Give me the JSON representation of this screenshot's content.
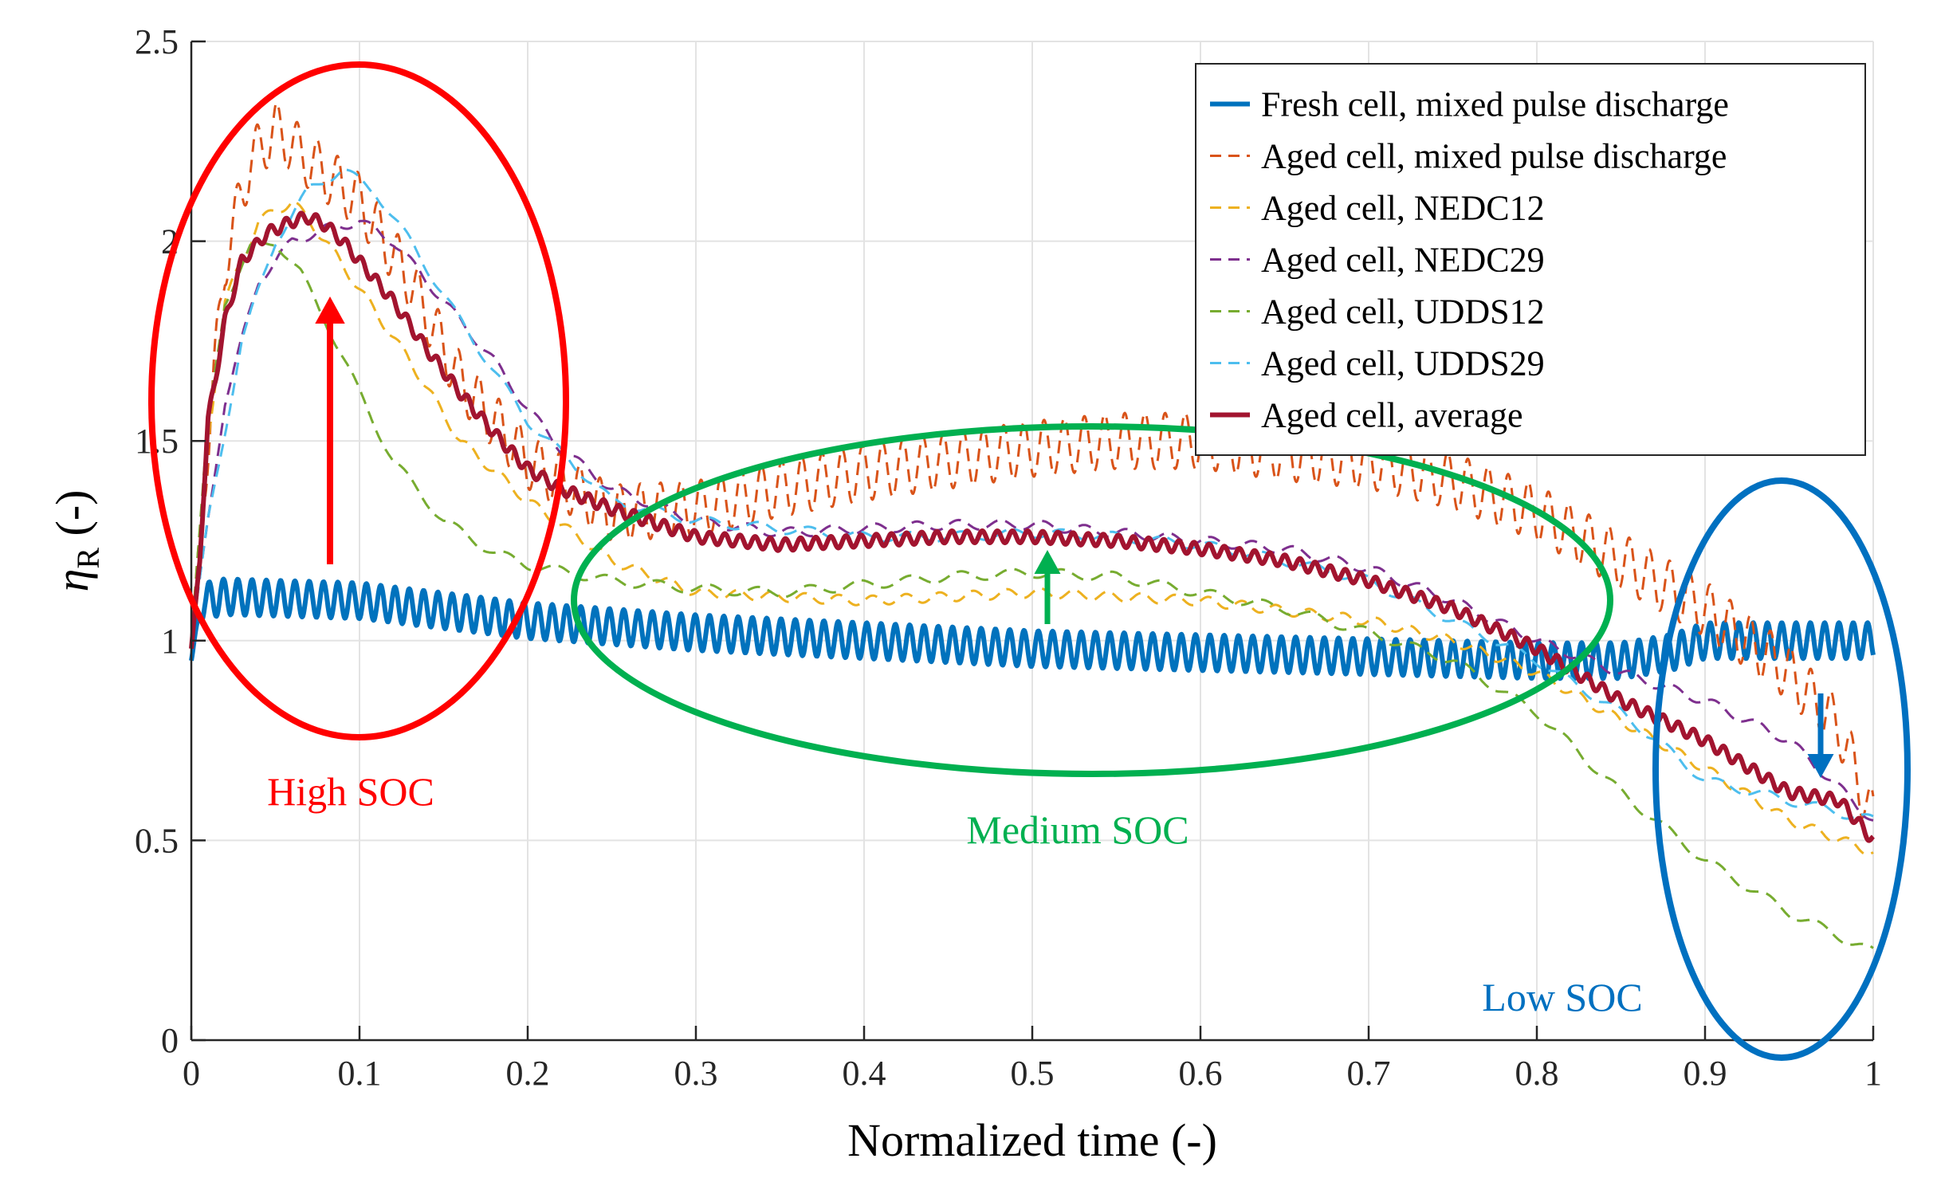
{
  "chart_data": {
    "type": "line",
    "title": "",
    "xlabel": "Normalized time (-)",
    "ylabel_symbol": "η",
    "ylabel_subscript": "R",
    "ylabel_suffix": " (-)",
    "xlim": [
      0,
      1
    ],
    "ylim": [
      0,
      2.5
    ],
    "x_ticks": [
      0,
      0.1,
      0.2,
      0.3,
      0.4,
      0.5,
      0.6,
      0.7,
      0.8,
      0.9,
      1
    ],
    "x_tick_labels": [
      "0",
      "0.1",
      "0.2",
      "0.3",
      "0.4",
      "0.5",
      "0.6",
      "0.7",
      "0.8",
      "0.9",
      "1"
    ],
    "y_ticks": [
      0,
      0.5,
      1,
      1.5,
      2,
      2.5
    ],
    "y_tick_labels": [
      "0",
      "0.5",
      "1",
      "1.5",
      "2",
      "2.5"
    ],
    "grid": true,
    "legend_position": "top-right",
    "series": [
      {
        "name": "Fresh cell, mixed pulse discharge",
        "color": "#0072BD",
        "style": "solid",
        "ripple_amp": 0.045,
        "ripple_period": 0.0085,
        "x": [
          0,
          0.004,
          0.008,
          0.02,
          0.1,
          0.2,
          0.3,
          0.4,
          0.5,
          0.6,
          0.7,
          0.8,
          0.85,
          0.88,
          0.9,
          0.95,
          0.98,
          1
        ],
        "y": [
          0.95,
          1.05,
          1.1,
          1.11,
          1.1,
          1.05,
          1.02,
          1.0,
          0.98,
          0.97,
          0.96,
          0.95,
          0.95,
          0.97,
          1.0,
          1.0,
          1.0,
          1.0
        ]
      },
      {
        "name": "Aged cell, mixed pulse discharge",
        "color": "#D95319",
        "style": "dashed",
        "ripple_amp": 0.07,
        "ripple_period": 0.012,
        "x": [
          0,
          0.01,
          0.02,
          0.035,
          0.05,
          0.07,
          0.1,
          0.13,
          0.16,
          0.2,
          0.25,
          0.3,
          0.35,
          0.4,
          0.45,
          0.5,
          0.55,
          0.6,
          0.65,
          0.7,
          0.75,
          0.8,
          0.85,
          0.9,
          0.95,
          0.98,
          1
        ],
        "y": [
          1.0,
          1.5,
          1.95,
          2.2,
          2.28,
          2.2,
          2.1,
          1.9,
          1.65,
          1.45,
          1.32,
          1.33,
          1.38,
          1.42,
          1.45,
          1.48,
          1.5,
          1.5,
          1.47,
          1.45,
          1.4,
          1.32,
          1.2,
          1.08,
          0.92,
          0.78,
          0.55
        ]
      },
      {
        "name": "Aged cell, NEDC12",
        "color": "#EDB120",
        "style": "dashed",
        "ripple_amp": 0.012,
        "ripple_period": 0.02,
        "x": [
          0,
          0.01,
          0.02,
          0.04,
          0.06,
          0.08,
          0.1,
          0.13,
          0.16,
          0.2,
          0.25,
          0.3,
          0.4,
          0.5,
          0.6,
          0.7,
          0.75,
          0.8,
          0.85,
          0.9,
          0.95,
          1
        ],
        "y": [
          1.0,
          1.5,
          1.85,
          2.05,
          2.1,
          2.0,
          1.88,
          1.7,
          1.5,
          1.35,
          1.2,
          1.12,
          1.1,
          1.12,
          1.1,
          1.05,
          1.0,
          0.92,
          0.8,
          0.68,
          0.55,
          0.47
        ]
      },
      {
        "name": "Aged cell, NEDC29",
        "color": "#7E2F8E",
        "style": "dashed",
        "ripple_amp": 0.012,
        "ripple_period": 0.025,
        "x": [
          0,
          0.01,
          0.02,
          0.04,
          0.06,
          0.08,
          0.1,
          0.12,
          0.15,
          0.18,
          0.2,
          0.22,
          0.25,
          0.3,
          0.35,
          0.4,
          0.45,
          0.5,
          0.55,
          0.6,
          0.65,
          0.7,
          0.75,
          0.8,
          0.85,
          0.9,
          0.95,
          1
        ],
        "y": [
          1.0,
          1.3,
          1.6,
          1.9,
          2.0,
          2.03,
          2.05,
          2.0,
          1.85,
          1.7,
          1.58,
          1.48,
          1.38,
          1.3,
          1.27,
          1.28,
          1.29,
          1.29,
          1.27,
          1.25,
          1.23,
          1.18,
          1.1,
          1.0,
          0.92,
          0.85,
          0.75,
          0.55
        ]
      },
      {
        "name": "Aged cell, UDDS12",
        "color": "#77AC30",
        "style": "dashed",
        "ripple_amp": 0.012,
        "ripple_period": 0.03,
        "x": [
          0,
          0.01,
          0.02,
          0.035,
          0.05,
          0.065,
          0.08,
          0.1,
          0.12,
          0.15,
          0.18,
          0.2,
          0.25,
          0.3,
          0.35,
          0.4,
          0.45,
          0.5,
          0.55,
          0.6,
          0.65,
          0.7,
          0.75,
          0.8,
          0.85,
          0.9,
          0.95,
          1
        ],
        "y": [
          1.0,
          1.55,
          1.85,
          1.98,
          2.0,
          1.92,
          1.8,
          1.62,
          1.45,
          1.3,
          1.22,
          1.19,
          1.15,
          1.13,
          1.12,
          1.14,
          1.16,
          1.17,
          1.16,
          1.12,
          1.08,
          1.02,
          0.95,
          0.82,
          0.62,
          0.45,
          0.32,
          0.22
        ]
      },
      {
        "name": "Aged cell, UDDS29",
        "color": "#4DBEEE",
        "style": "dashed",
        "ripple_amp": 0.012,
        "ripple_period": 0.03,
        "x": [
          0,
          0.01,
          0.03,
          0.05,
          0.07,
          0.09,
          0.11,
          0.13,
          0.16,
          0.2,
          0.25,
          0.3,
          0.35,
          0.4,
          0.45,
          0.5,
          0.55,
          0.6,
          0.65,
          0.7,
          0.75,
          0.8,
          0.85,
          0.88,
          0.9,
          0.95,
          1
        ],
        "y": [
          1.0,
          1.3,
          1.75,
          2.0,
          2.13,
          2.18,
          2.12,
          2.0,
          1.8,
          1.55,
          1.35,
          1.3,
          1.28,
          1.26,
          1.26,
          1.27,
          1.26,
          1.24,
          1.2,
          1.15,
          1.05,
          0.95,
          0.82,
          0.72,
          0.65,
          0.6,
          0.55
        ]
      },
      {
        "name": "Aged cell, average",
        "color": "#A2142F",
        "style": "solid",
        "ripple_amp": 0.015,
        "ripple_period": 0.009,
        "x": [
          0,
          0.005,
          0.01,
          0.02,
          0.03,
          0.045,
          0.06,
          0.07,
          0.08,
          0.09,
          0.1,
          0.12,
          0.14,
          0.16,
          0.18,
          0.2,
          0.22,
          0.25,
          0.3,
          0.35,
          0.4,
          0.45,
          0.5,
          0.55,
          0.6,
          0.65,
          0.7,
          0.75,
          0.8,
          0.85,
          0.9,
          0.95,
          0.98,
          1
        ],
        "y": [
          0.98,
          1.2,
          1.55,
          1.8,
          1.95,
          2.02,
          2.05,
          2.06,
          2.04,
          2.0,
          1.95,
          1.85,
          1.73,
          1.62,
          1.52,
          1.43,
          1.38,
          1.33,
          1.26,
          1.24,
          1.25,
          1.26,
          1.26,
          1.25,
          1.23,
          1.2,
          1.15,
          1.08,
          0.98,
          0.85,
          0.75,
          0.62,
          0.6,
          0.5
        ]
      }
    ],
    "annotations": [
      {
        "text": "High SOC",
        "color": "#FF0000"
      },
      {
        "text": "Medium SOC",
        "color": "#00B050"
      },
      {
        "text": "Low SOC",
        "color": "#0070C0"
      }
    ]
  }
}
